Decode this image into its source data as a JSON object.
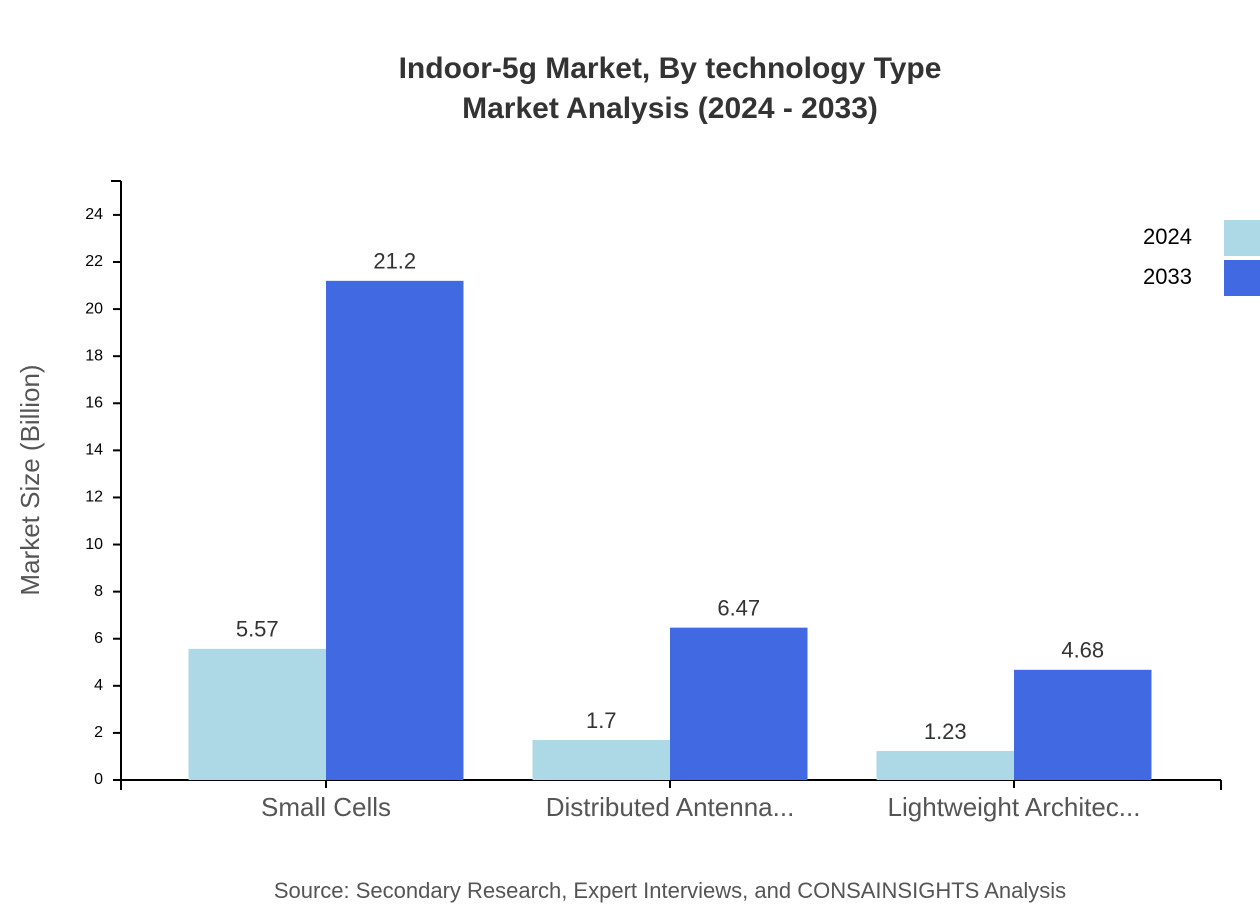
{
  "chart_data": {
    "type": "bar",
    "title": [
      "Indoor-5g Market, By technology Type",
      "Market Analysis (2024 - 2033)"
    ],
    "ylabel": "Market Size (Billion)",
    "source": "Source: Secondary Research, Expert Interviews, and CONSAINSIGHTS Analysis",
    "categories": [
      "Small Cells",
      "Distributed Antenna...",
      "Lightweight Architec..."
    ],
    "series": [
      {
        "name": "2024",
        "color": "#add8e6",
        "values": [
          5.57,
          1.7,
          1.23
        ]
      },
      {
        "name": "2033",
        "color": "#4169e1",
        "values": [
          21.2,
          6.47,
          4.68
        ]
      }
    ],
    "ylim": [
      0,
      25.44
    ],
    "yticks": [
      0,
      2,
      4,
      6,
      8,
      10,
      12,
      14,
      16,
      18,
      20,
      22,
      24
    ]
  }
}
